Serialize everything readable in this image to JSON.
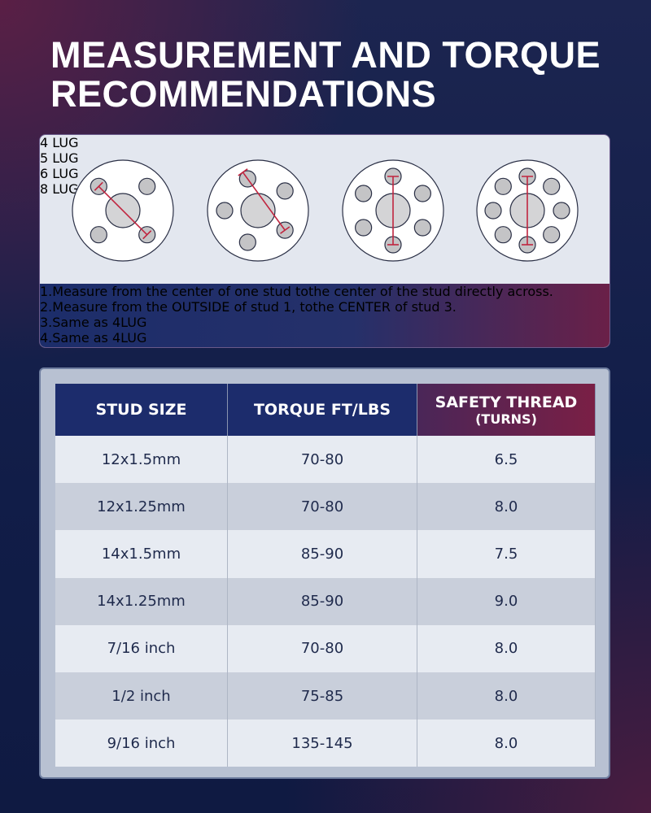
{
  "title": [
    "MEASUREMENT AND TORQUE",
    "RECOMMENDATIONS"
  ],
  "lugs": [
    {
      "label": "4 LUG",
      "note": "1.Measure from the center of one stud tothe center of the stud directly across."
    },
    {
      "label": "5 LUG",
      "note": "2.Measure from the OUTSIDE of stud 1, tothe CENTER of stud 3."
    },
    {
      "label": "6 LUG",
      "note": "3.Same as 4LUG"
    },
    {
      "label": "8 LUG",
      "note": "4.Same as 4LUG"
    }
  ],
  "table": {
    "header": [
      "STUD SIZE",
      "TORQUE FT/LBS",
      "SAFETY THREAD"
    ],
    "header_sub": "(TURNS)",
    "rows": [
      [
        "12x1.5mm",
        "70-80",
        "6.5"
      ],
      [
        "12x1.25mm",
        "70-80",
        "8.0"
      ],
      [
        "14x1.5mm",
        "85-90",
        "7.5"
      ],
      [
        "14x1.25mm",
        "85-90",
        "9.0"
      ],
      [
        "7/16 inch",
        "70-80",
        "8.0"
      ],
      [
        "1/2 inch",
        "75-85",
        "8.0"
      ],
      [
        "9/16 inch",
        "135-145",
        "8.0"
      ]
    ]
  }
}
